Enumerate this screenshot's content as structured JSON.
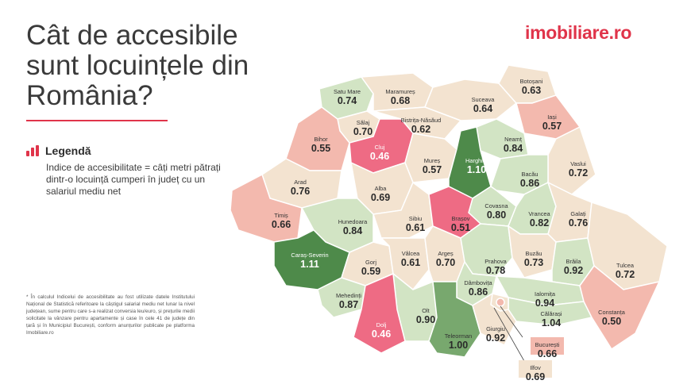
{
  "header": {
    "title_line1": "Cât de accesibile",
    "title_line2": "sunt locuințele din",
    "title_line3": "România?",
    "logo": "imobiliare.ro"
  },
  "legend": {
    "icon": "bar-chart-icon",
    "title": "Legendă",
    "text": "Indice de accesibilitate = câți metri pătrați dintr-o locuință cumperi în județ cu un salariul mediu net"
  },
  "footnote": "* În calculul Indicelui de accesibilitate au fost utilizate datele Institutului Național de Statistică referitoare la câștigul salarial mediu net lunar la nivel județean, sume pentru care s-a realizat conversia leu/euro, și prețurile medii solicitate la vânzare pentru apartamente și case în cele 41 de județe din țară și în Municipiul București, conform anunțurilor publicate pe platforma Imobiliare.ro",
  "colors": {
    "accent": "#e0344a",
    "dark_green": "#4e8a4a",
    "light_green": "#d2e4c4",
    "beige": "#f3e3d0",
    "salmon": "#f3b9ae",
    "pink": "#ee6b84"
  },
  "counties": [
    {
      "name": "Satu Mare",
      "value": "0.74"
    },
    {
      "name": "Maramureș",
      "value": "0.68"
    },
    {
      "name": "Suceava",
      "value": "0.64"
    },
    {
      "name": "Botoșani",
      "value": "0.63"
    },
    {
      "name": "Sălaj",
      "value": "0.70"
    },
    {
      "name": "Bistrița-Năsăud",
      "value": "0.62"
    },
    {
      "name": "Iași",
      "value": "0.57"
    },
    {
      "name": "Bihor",
      "value": "0.55"
    },
    {
      "name": "Cluj",
      "value": "0.46"
    },
    {
      "name": "Neamț",
      "value": "0.84"
    },
    {
      "name": "Mureș",
      "value": "0.57"
    },
    {
      "name": "Harghita",
      "value": "1.10"
    },
    {
      "name": "Vaslui",
      "value": "0.72"
    },
    {
      "name": "Bacău",
      "value": "0.86"
    },
    {
      "name": "Arad",
      "value": "0.76"
    },
    {
      "name": "Alba",
      "value": "0.69"
    },
    {
      "name": "Covasna",
      "value": "0.80"
    },
    {
      "name": "Vrancea",
      "value": "0.82"
    },
    {
      "name": "Galați",
      "value": "0.76"
    },
    {
      "name": "Timiș",
      "value": "0.66"
    },
    {
      "name": "Sibiu",
      "value": "0.61"
    },
    {
      "name": "Brașov",
      "value": "0.51"
    },
    {
      "name": "Hunedoara",
      "value": "0.84"
    },
    {
      "name": "Caraș-Severin",
      "value": "1.11"
    },
    {
      "name": "Gorj",
      "value": "0.59"
    },
    {
      "name": "Vâlcea",
      "value": "0.61"
    },
    {
      "name": "Argeș",
      "value": "0.70"
    },
    {
      "name": "Prahova",
      "value": "0.78"
    },
    {
      "name": "Buzău",
      "value": "0.73"
    },
    {
      "name": "Brăila",
      "value": "0.92"
    },
    {
      "name": "Tulcea",
      "value": "0.72"
    },
    {
      "name": "Dâmbovița",
      "value": "0.86"
    },
    {
      "name": "Mehedinți",
      "value": "0.87"
    },
    {
      "name": "Ialomița",
      "value": "0.94"
    },
    {
      "name": "Olt",
      "value": "0.90"
    },
    {
      "name": "Călărași",
      "value": "1.04"
    },
    {
      "name": "Constanța",
      "value": "0.50"
    },
    {
      "name": "Dolj",
      "value": "0.46"
    },
    {
      "name": "Teleorman",
      "value": "1.00"
    },
    {
      "name": "Giurgiu",
      "value": "0.92"
    },
    {
      "name": "București",
      "value": "0.66"
    },
    {
      "name": "Ilfov",
      "value": "0.69"
    }
  ]
}
